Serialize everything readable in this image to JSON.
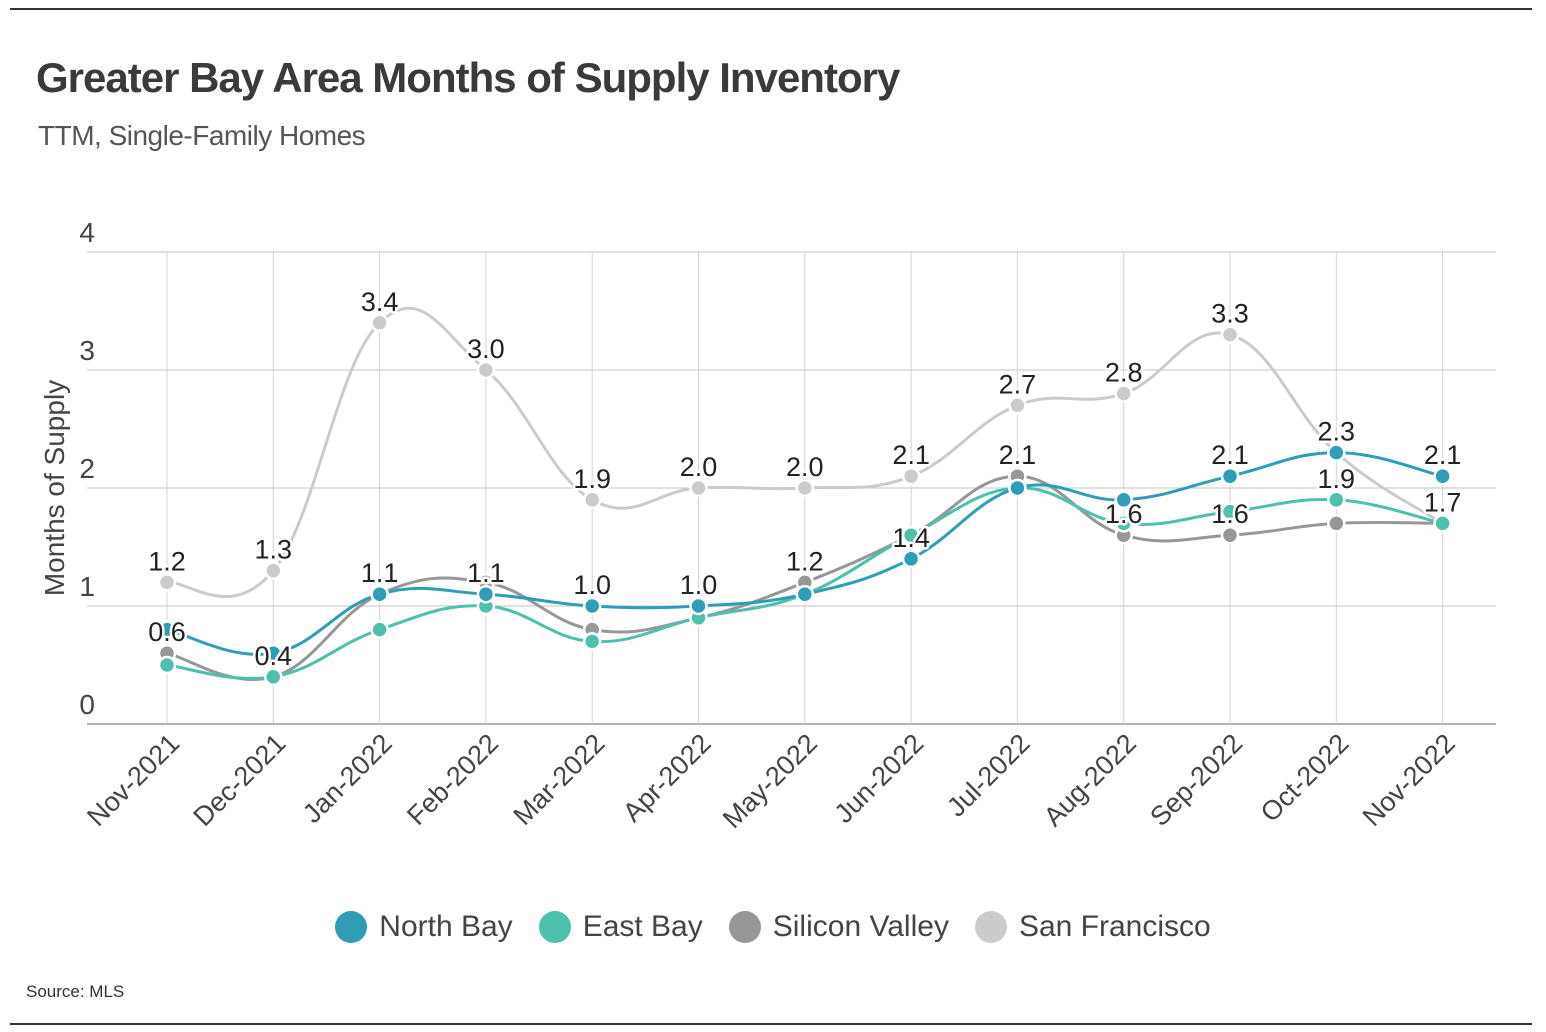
{
  "header": {
    "title": "Greater Bay Area Months of Supply Inventory",
    "subtitle": "TTM, Single-Family Homes"
  },
  "footer": {
    "source": "Source:  MLS"
  },
  "chart_data": {
    "type": "line",
    "title": "Greater Bay Area Months of Supply Inventory",
    "subtitle": "TTM, Single-Family Homes",
    "xlabel": "",
    "ylabel": "Months of Supply",
    "ylim": [
      0,
      4
    ],
    "yticks": [
      0,
      1,
      2,
      3,
      4
    ],
    "grid": true,
    "legend_position": "bottom-center",
    "categories": [
      "Nov-2021",
      "Dec-2021",
      "Jan-2022",
      "Feb-2022",
      "Mar-2022",
      "Apr-2022",
      "May-2022",
      "Jun-2022",
      "Jul-2022",
      "Aug-2022",
      "Sep-2022",
      "Oct-2022",
      "Nov-2022"
    ],
    "series": [
      {
        "name": "North Bay",
        "color": "#2e9db5",
        "values": [
          0.8,
          0.6,
          1.1,
          1.1,
          1.0,
          1.0,
          1.1,
          1.4,
          2.0,
          1.9,
          2.1,
          2.3,
          2.1
        ]
      },
      {
        "name": "East Bay",
        "color": "#4fc0ad",
        "values": [
          0.5,
          0.4,
          0.8,
          1.0,
          0.7,
          0.9,
          1.1,
          1.6,
          2.0,
          1.7,
          1.8,
          1.9,
          1.7
        ]
      },
      {
        "name": "Silicon Valley",
        "color": "#979797",
        "values": [
          0.6,
          0.4,
          1.1,
          1.2,
          0.8,
          0.9,
          1.2,
          1.6,
          2.1,
          1.6,
          1.6,
          1.7,
          1.7
        ]
      },
      {
        "name": "San Francisco",
        "color": "#cbcbcb",
        "values": [
          1.2,
          1.3,
          3.4,
          3.0,
          1.9,
          2.0,
          2.0,
          2.1,
          2.7,
          2.8,
          3.3,
          2.3,
          1.7
        ]
      }
    ],
    "data_labels": [
      {
        "category": "Nov-2021",
        "text": "1.2",
        "value": 1.2
      },
      {
        "category": "Dec-2021",
        "text": "1.3",
        "value": 1.3
      },
      {
        "category": "Jan-2022",
        "text": "3.4",
        "value": 3.4
      },
      {
        "category": "Feb-2022",
        "text": "3.0",
        "value": 3.0
      },
      {
        "category": "Mar-2022",
        "text": "1.9",
        "value": 1.9
      },
      {
        "category": "Apr-2022",
        "text": "2.0",
        "value": 2.0
      },
      {
        "category": "May-2022",
        "text": "2.0",
        "value": 2.0
      },
      {
        "category": "Jun-2022",
        "text": "2.1",
        "value": 2.1
      },
      {
        "category": "Jul-2022",
        "text": "2.7",
        "value": 2.7
      },
      {
        "category": "Aug-2022",
        "text": "2.8",
        "value": 2.8
      },
      {
        "category": "Sep-2022",
        "text": "3.3",
        "value": 3.3
      },
      {
        "category": "Oct-2022",
        "text": "2.3",
        "value": 2.3
      },
      {
        "category": "Nov-2022",
        "text": "2.1",
        "value": 2.1
      },
      {
        "category": "Nov-2021",
        "text": "0.6",
        "value": 0.6
      },
      {
        "category": "Dec-2021",
        "text": "0.4",
        "value": 0.4
      },
      {
        "category": "Jan-2022",
        "text": "1.1",
        "value": 1.1
      },
      {
        "category": "Feb-2022",
        "text": "1.1",
        "value": 1.1
      },
      {
        "category": "Mar-2022",
        "text": "1.0",
        "value": 1.0
      },
      {
        "category": "Apr-2022",
        "text": "1.0",
        "value": 1.0
      },
      {
        "category": "May-2022",
        "text": "1.2",
        "value": 1.2
      },
      {
        "category": "Jun-2022",
        "text": "1.4",
        "value": 1.4
      },
      {
        "category": "Jul-2022",
        "text": "2.1",
        "value": 2.1
      },
      {
        "category": "Aug-2022",
        "text": "1.6",
        "value": 1.6
      },
      {
        "category": "Sep-2022",
        "text": "2.1",
        "value": 2.1
      },
      {
        "category": "Sep-2022",
        "text": "1.6",
        "value": 1.6
      },
      {
        "category": "Oct-2022",
        "text": "1.9",
        "value": 1.9
      },
      {
        "category": "Nov-2022",
        "text": "1.7",
        "value": 1.7
      }
    ]
  }
}
